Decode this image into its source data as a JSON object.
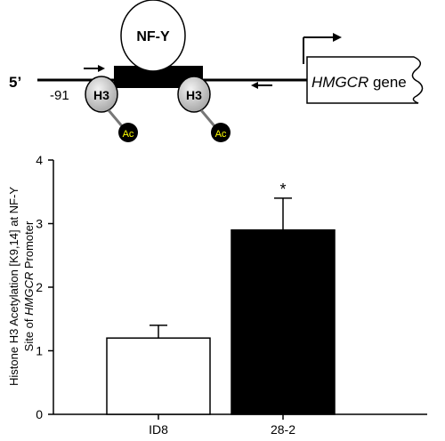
{
  "diagram": {
    "five_prime": "5’",
    "position": "-91",
    "nfy_label": "NF-Y",
    "h3_label": "H3",
    "ac_label": "Ac",
    "gene_italic": "HMGCR",
    "gene_suffix": " gene",
    "colors": {
      "ac_fill": "#000000",
      "ac_text": "#ffff00",
      "box": "#000000"
    }
  },
  "chart_data": {
    "type": "bar",
    "categories": [
      "ID8",
      "28-2"
    ],
    "values": [
      1.2,
      2.9
    ],
    "errors": [
      0.2,
      0.5
    ],
    "significance": [
      "",
      "*"
    ],
    "bar_colors": [
      "#ffffff",
      "#000000"
    ],
    "ylabel_line1": "Histone H3 Acetylation [K9,14] at NF-Y",
    "ylabel_line2_prefix": "Site of ",
    "ylabel_line2_italic": "HMGCR",
    "ylabel_line2_suffix": " Promoter",
    "ylim": [
      0,
      4
    ],
    "yticks": [
      0,
      1,
      2,
      3,
      4
    ],
    "grid": false
  }
}
